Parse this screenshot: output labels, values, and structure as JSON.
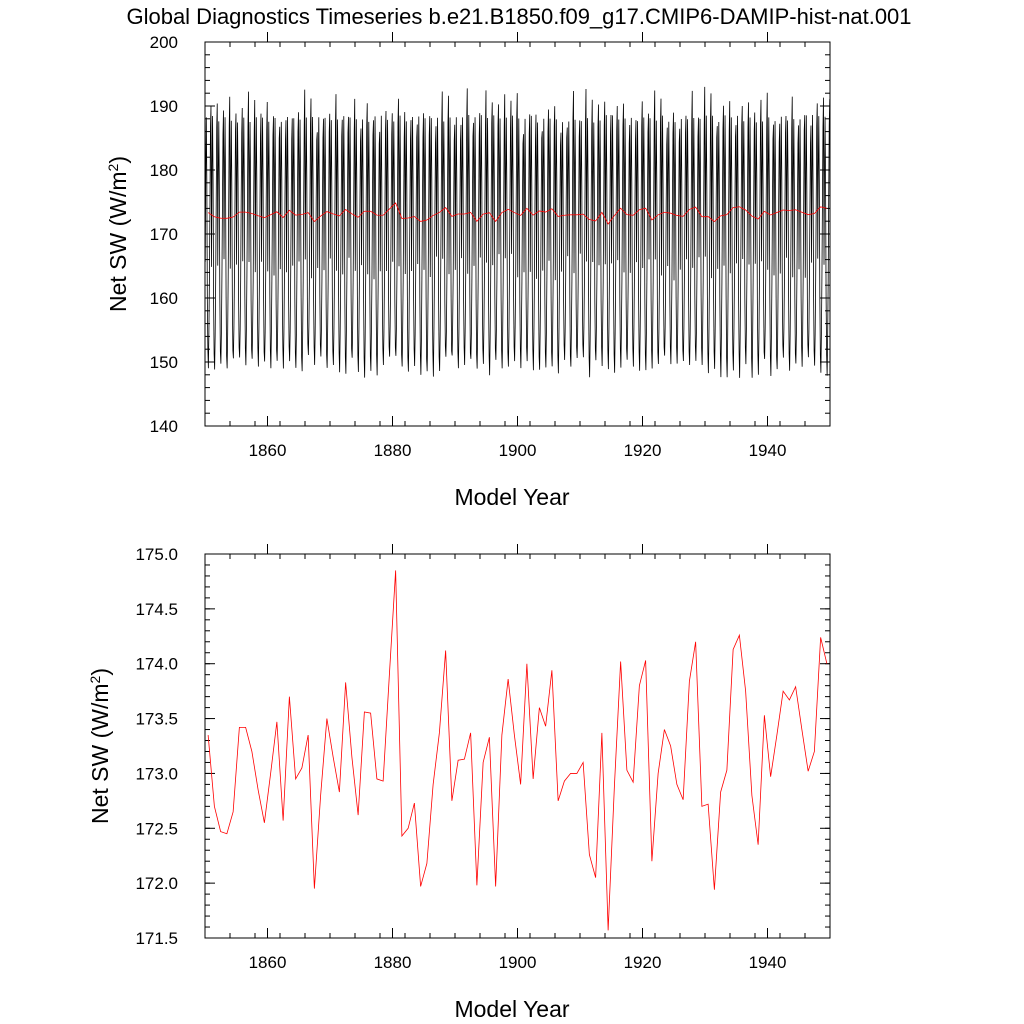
{
  "figure": {
    "title": "Global Diagnostics Timeseries b.e21.B1850.f09_g17.CMIP6-DAMIP-hist-nat.001"
  },
  "colors": {
    "monthly": "#000000",
    "annual": "#ff0000",
    "axes": "#000000"
  },
  "chart_data": [
    {
      "type": "line",
      "title": "Global Diagnostics Timeseries b.e21.B1850.f09_g17.CMIP6-DAMIP-hist-nat.001",
      "xlabel": "Model Year",
      "ylabel": "Net SW (W/m",
      "ylabel_sup": "2",
      "ylabel_close": ")",
      "xlim": [
        1850,
        1950
      ],
      "ylim": [
        140,
        200
      ],
      "xticks": [
        1860,
        1880,
        1900,
        1920,
        1940
      ],
      "xtick_labels": [
        "1860",
        "1880",
        "1900",
        "1920",
        "1940"
      ],
      "yticks": [
        140,
        150,
        160,
        170,
        180,
        190,
        200
      ],
      "ytick_labels": [
        "140",
        "150",
        "160",
        "170",
        "180",
        "190",
        "200"
      ],
      "grid": false,
      "monthly": {
        "start_year": 1850,
        "end_year": 1950,
        "jan_feb_mar_apr": [
          165,
          180,
          188,
          178
        ],
        "may_jun_jul_aug": [
          160,
          152,
          150,
          155
        ],
        "sep_oct_nov_dec": [
          163,
          175,
          186,
          189.5
        ],
        "peak_range": [
          186,
          192.8
        ],
        "trough_range": [
          147.8,
          151
        ]
      },
      "series_annual_ref": "annual_means"
    },
    {
      "type": "line",
      "xlabel": "Model Year",
      "ylabel": "Net SW (W/m",
      "ylabel_sup": "2",
      "ylabel_close": ")",
      "xlim": [
        1850,
        1950
      ],
      "ylim": [
        171.5,
        175.0
      ],
      "xticks": [
        1860,
        1880,
        1900,
        1920,
        1940
      ],
      "xtick_labels": [
        "1860",
        "1880",
        "1900",
        "1920",
        "1940"
      ],
      "yticks": [
        171.5,
        172.0,
        172.5,
        173.0,
        173.5,
        174.0,
        174.5,
        175.0
      ],
      "ytick_labels": [
        "171.5",
        "172.0",
        "172.5",
        "173.0",
        "173.5",
        "174.0",
        "174.5",
        "175.0"
      ],
      "grid": false,
      "series_annual_ref": "annual_means"
    }
  ],
  "annual_means": {
    "x": [
      1850.5,
      1851.5,
      1852.5,
      1853.5,
      1854.5,
      1855.5,
      1856.5,
      1857.5,
      1858.5,
      1859.5,
      1860.5,
      1861.5,
      1862.5,
      1863.5,
      1864.5,
      1865.5,
      1866.5,
      1867.5,
      1868.5,
      1869.5,
      1870.5,
      1871.5,
      1872.5,
      1873.5,
      1874.5,
      1875.5,
      1876.5,
      1877.5,
      1878.5,
      1879.5,
      1880.5,
      1881.5,
      1882.5,
      1883.5,
      1884.5,
      1885.5,
      1886.5,
      1887.5,
      1888.5,
      1889.5,
      1890.5,
      1891.5,
      1892.5,
      1893.5,
      1894.5,
      1895.5,
      1896.5,
      1897.5,
      1898.5,
      1899.5,
      1900.5,
      1901.5,
      1902.5,
      1903.5,
      1904.5,
      1905.5,
      1906.5,
      1907.5,
      1908.5,
      1909.5,
      1910.5,
      1911.5,
      1912.5,
      1913.5,
      1914.5,
      1915.5,
      1916.5,
      1917.5,
      1918.5,
      1919.5,
      1920.5,
      1921.5,
      1922.5,
      1923.5,
      1924.5,
      1925.5,
      1926.5,
      1927.5,
      1928.5,
      1929.5,
      1930.5,
      1931.5,
      1932.5,
      1933.5,
      1934.5,
      1935.5,
      1936.5,
      1937.5,
      1938.5,
      1939.5,
      1940.5,
      1941.5,
      1942.5,
      1943.5,
      1944.5,
      1945.5,
      1946.5,
      1947.5,
      1948.5,
      1949.5
    ],
    "y": [
      173.35,
      172.7,
      172.47,
      172.45,
      172.65,
      173.42,
      173.42,
      173.2,
      172.85,
      172.55,
      173.0,
      173.47,
      172.57,
      173.7,
      172.95,
      173.05,
      173.35,
      171.95,
      172.8,
      173.5,
      173.15,
      172.83,
      173.83,
      173.15,
      172.62,
      173.56,
      173.55,
      172.95,
      172.93,
      173.9,
      174.85,
      172.43,
      172.5,
      172.73,
      171.97,
      172.18,
      172.9,
      173.37,
      174.12,
      172.75,
      173.12,
      173.13,
      173.37,
      171.98,
      173.1,
      173.33,
      171.97,
      173.35,
      173.86,
      173.35,
      172.9,
      174.0,
      172.95,
      173.6,
      173.43,
      173.94,
      172.75,
      172.93,
      173.0,
      173.0,
      173.1,
      172.26,
      172.05,
      173.37,
      171.57,
      172.88,
      174.02,
      173.03,
      172.92,
      173.8,
      174.03,
      172.2,
      173.0,
      173.4,
      173.25,
      172.9,
      172.76,
      173.84,
      174.2,
      172.7,
      172.72,
      171.94,
      172.83,
      173.03,
      174.13,
      174.26,
      173.75,
      172.8,
      172.35,
      173.53,
      172.97,
      173.35,
      173.75,
      173.67,
      173.79,
      173.4,
      173.02,
      173.2,
      174.24,
      174.0
    ]
  }
}
